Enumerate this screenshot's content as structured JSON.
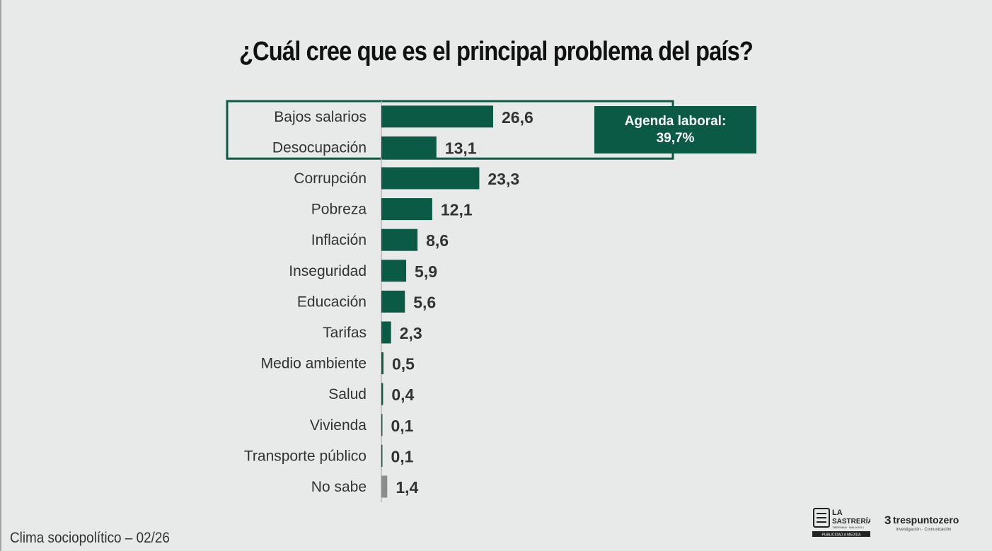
{
  "footer": {
    "text": "Clima sociopolítico – 02/26"
  },
  "callout": {
    "line1": "Agenda laboral:",
    "line2": "39,7%"
  },
  "logos": {
    "sastreria": {
      "line1": "LA",
      "line2": "SASTRERÍA",
      "line3": "TIBERMAN · MALAGOLI",
      "line4": "PUBLICIDAD A MEDIDA"
    },
    "trespuntozero": {
      "name": "trespuntozero",
      "tagline": "Investigación · Comunicación"
    }
  },
  "chart_data": {
    "type": "bar",
    "orientation": "horizontal",
    "title": "¿Cuál cree que es el principal problema del país?",
    "categories": [
      "Bajos salarios",
      "Desocupación",
      "Corrupción",
      "Pobreza",
      "Inflación",
      "Inseguridad",
      "Educación",
      "Tarifas",
      "Medio ambiente",
      "Salud",
      "Vivienda",
      "Transporte público",
      "No sabe"
    ],
    "values": [
      26.6,
      13.1,
      23.3,
      12.1,
      8.6,
      5.9,
      5.6,
      2.3,
      0.5,
      0.4,
      0.1,
      0.1,
      1.4
    ],
    "value_labels": [
      "26,6",
      "13,1",
      "23,3",
      "12,1",
      "8,6",
      "5,9",
      "5,6",
      "2,3",
      "0,5",
      "0,4",
      "0,1",
      "0,1",
      "1,4"
    ],
    "bar_colors": [
      "#0b5a45",
      "#0b5a45",
      "#0b5a45",
      "#0b5a45",
      "#0b5a45",
      "#0b5a45",
      "#0b5a45",
      "#0b5a45",
      "#0b5a45",
      "#0b5a45",
      "#0b5a45",
      "#0b5a45",
      "#8c8c8c"
    ],
    "highlight_group": {
      "categories": [
        "Bajos salarios",
        "Desocupación"
      ],
      "color": "#0b5a45"
    },
    "xlim": [
      0,
      30
    ],
    "grid": false,
    "legend": "none"
  }
}
